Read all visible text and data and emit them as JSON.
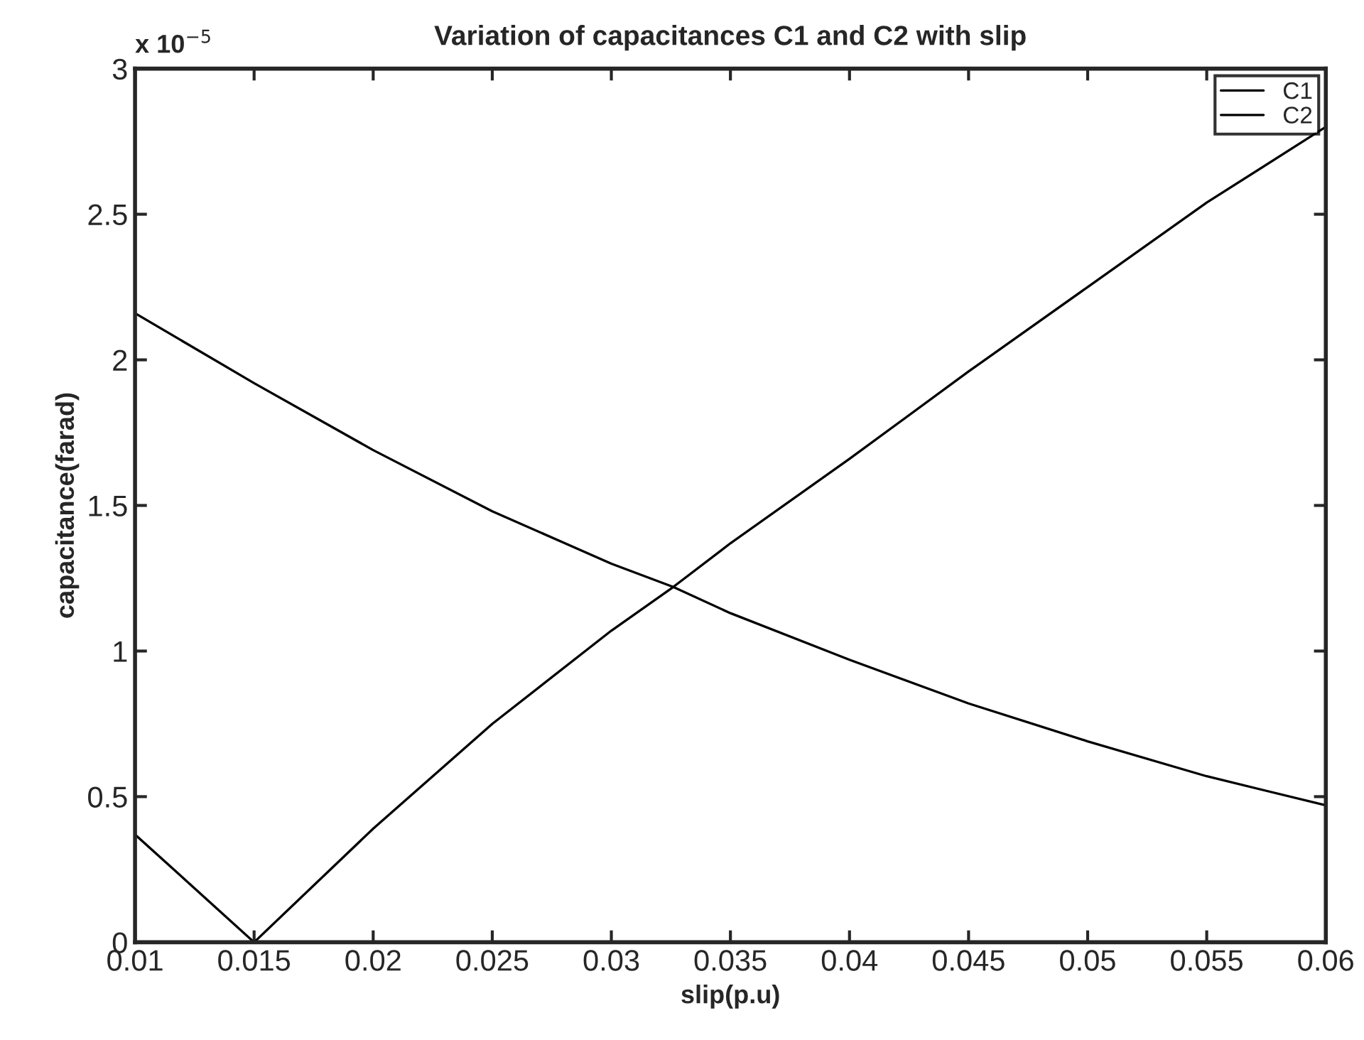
{
  "chart_data": {
    "type": "line",
    "title": "Variation of capacitances C1 and C2 with slip",
    "xlabel": "slip(p.u)",
    "ylabel": "capacitance(farad)",
    "annotations": [
      "x 10$^{−5}$"
    ],
    "x": [
      0.01,
      0.015,
      0.02,
      0.025,
      0.03,
      0.0326,
      0.035,
      0.04,
      0.045,
      0.05,
      0.055,
      0.06
    ],
    "series": [
      {
        "name": "C1",
        "color": "#000000",
        "values": [
          2.16,
          1.92,
          1.69,
          1.48,
          1.3,
          1.22,
          1.13,
          0.97,
          0.82,
          0.69,
          0.57,
          0.47
        ]
      },
      {
        "name": "C2",
        "color": "#000000",
        "values": [
          0.37,
          0,
          0.39,
          0.75,
          1.07,
          1.22,
          1.37,
          1.66,
          1.96,
          2.25,
          2.54,
          2.8
        ]
      }
    ],
    "xlim": [
      0.01,
      0.06
    ],
    "xticks": [
      0.01,
      0.015,
      0.02,
      0.025,
      0.03,
      0.035,
      0.04,
      0.045,
      0.05,
      0.055,
      0.06
    ],
    "ylim": [
      0,
      3
    ],
    "yticks": [
      0,
      0.5,
      1,
      1.5,
      2,
      2.5,
      3
    ],
    "legend": "top right",
    "grid": false,
    "marker": "none",
    "line_style": "solid"
  }
}
